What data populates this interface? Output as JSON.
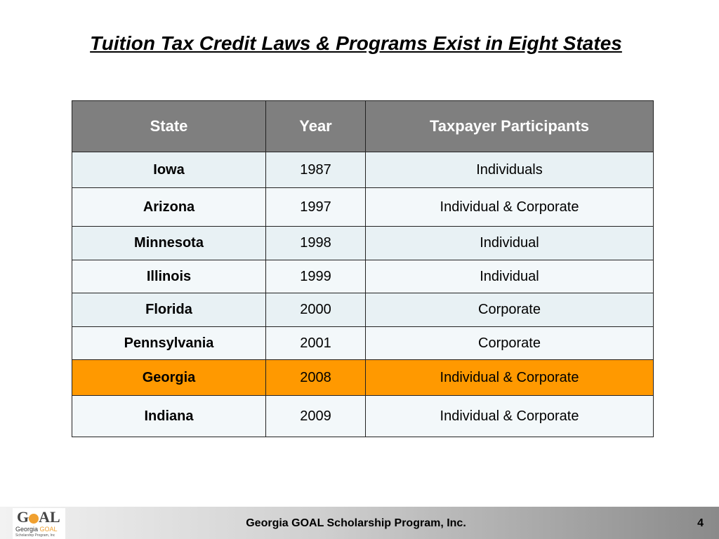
{
  "title": "Tuition Tax Credit Laws & Programs Exist in Eight States",
  "table": {
    "headers": [
      "State",
      "Year",
      "Taxpayer Participants"
    ],
    "rows": [
      {
        "state": "Iowa",
        "year": "1987",
        "participants": "Individuals"
      },
      {
        "state": "Arizona",
        "year": "1997",
        "participants": "Individual &  Corporate"
      },
      {
        "state": "Minnesota",
        "year": "1998",
        "participants": "Individual"
      },
      {
        "state": "Illinois",
        "year": "1999",
        "participants": "Individual"
      },
      {
        "state": "Florida",
        "year": "2000",
        "participants": "Corporate"
      },
      {
        "state": "Pennsylvania",
        "year": "2001",
        "participants": "Corporate"
      },
      {
        "state": "Georgia",
        "year": "2008",
        "participants": "Individual & Corporate"
      },
      {
        "state": "Indiana",
        "year": "2009",
        "participants": "Individual & Corporate"
      }
    ],
    "highlight_row": 6,
    "highlight_color": "#ff9900"
  },
  "footer": {
    "logo": {
      "main": "GOAL",
      "line1": "Georgia",
      "line1b": "GOAL",
      "line2": "Scholarship Program, Inc"
    },
    "text": "Georgia GOAL Scholarship Program, Inc.",
    "page_number": "4"
  }
}
